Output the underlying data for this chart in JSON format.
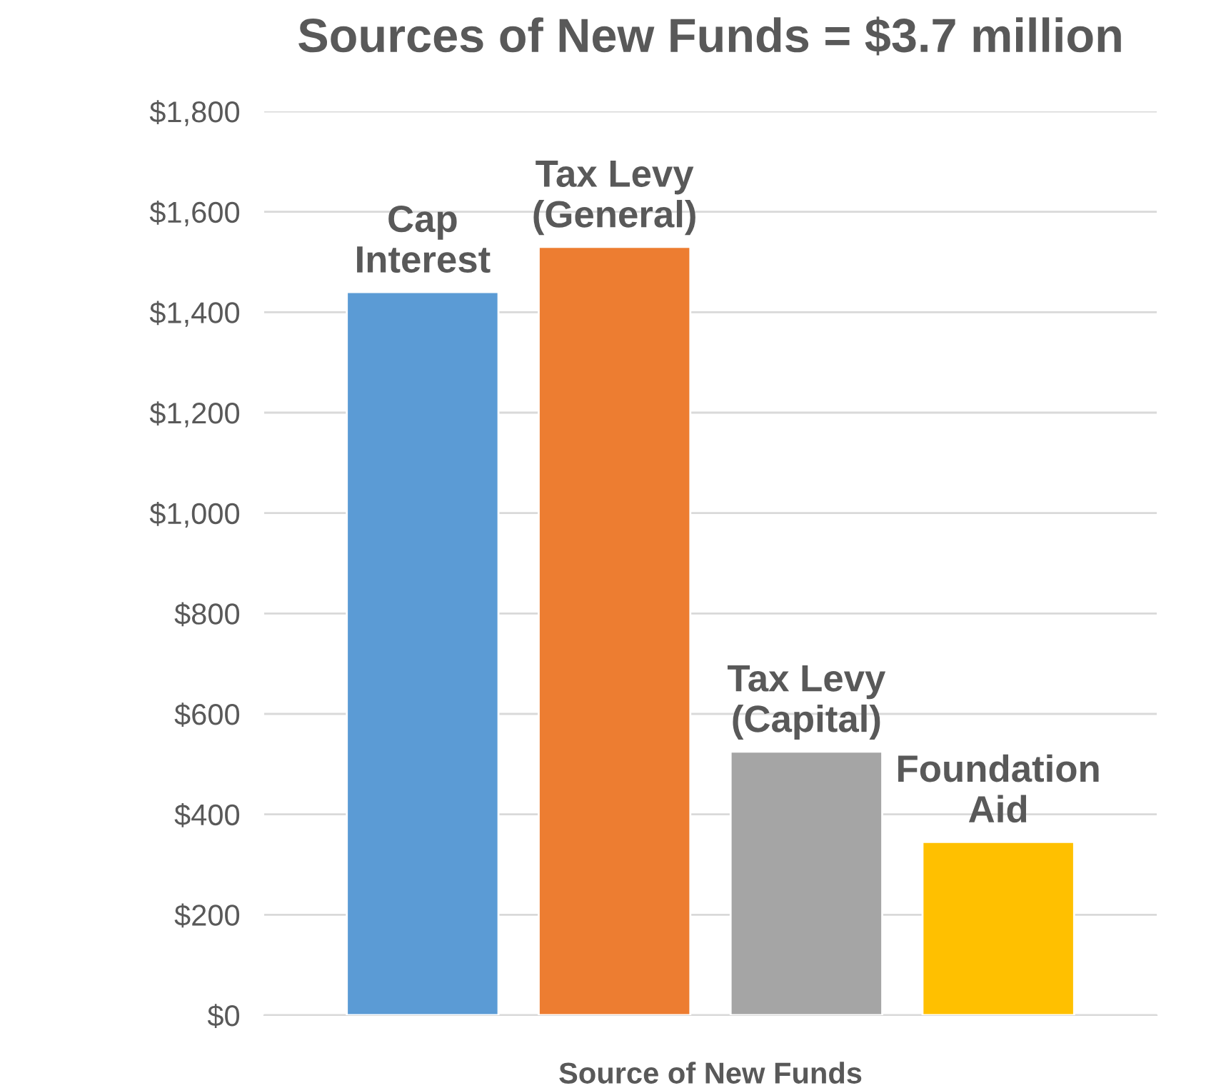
{
  "chart_data": {
    "type": "bar",
    "title": "Sources of New Funds = $3.7 million",
    "xlabel": "Source of New Funds",
    "categories": [
      null
    ],
    "series": [
      {
        "name": "Cap\nInterest",
        "color": "#5b9bd5",
        "values": [
          1440
        ]
      },
      {
        "name": "Tax Levy\n(General)",
        "color": "#ed7d31",
        "values": [
          1530
        ]
      },
      {
        "name": "Tax Levy\n(Capital)",
        "color": "#a5a5a5",
        "values": [
          525
        ]
      },
      {
        "name": "Foundation\nAid",
        "color": "#ffc000",
        "values": [
          345
        ]
      }
    ],
    "ylim": [
      0,
      1800
    ],
    "yticks": [
      {
        "value": 0,
        "label": "$0"
      },
      {
        "value": 200,
        "label": "$200"
      },
      {
        "value": 400,
        "label": "$400"
      },
      {
        "value": 600,
        "label": "$600"
      },
      {
        "value": 800,
        "label": "$800"
      },
      {
        "value": 1000,
        "label": "$1,000"
      },
      {
        "value": 1200,
        "label": "$1,200"
      },
      {
        "value": 1400,
        "label": "$1,400"
      },
      {
        "value": 1600,
        "label": "$1,600"
      },
      {
        "value": 1800,
        "label": "$1,800"
      }
    ],
    "grid": "y"
  }
}
